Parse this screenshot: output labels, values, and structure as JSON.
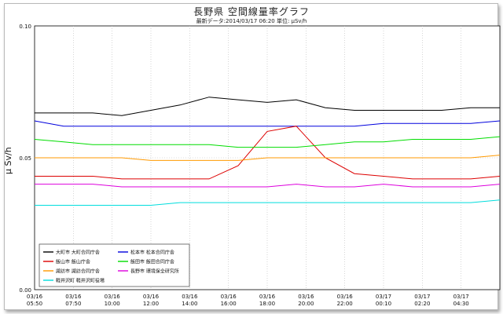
{
  "header": {
    "title": "長野県 空間線量率グラフ",
    "subtitle": "最新データ:2014/03/17 06:20 単位: μSv/h"
  },
  "chart_data": {
    "type": "line",
    "title": "長野県 空間線量率グラフ",
    "subtitle": "最新データ:2014/03/17 06:20 単位: μSv/h",
    "ylabel": "μ Sv/h",
    "ylim": [
      0.0,
      0.1
    ],
    "y_ticks": [
      "0.00",
      "0.05",
      "0.10"
    ],
    "grid": true,
    "x_tick_labels": [
      [
        "03/16",
        "05:50"
      ],
      [
        "03/16",
        "07:50"
      ],
      [
        "03/16",
        "10:00"
      ],
      [
        "03/16",
        "12:00"
      ],
      [
        "03/16",
        "14:00"
      ],
      [
        "03/16",
        "16:00"
      ],
      [
        "03/16",
        "18:00"
      ],
      [
        "03/16",
        "20:00"
      ],
      [
        "03/16",
        "22:00"
      ],
      [
        "03/17",
        "00:10"
      ],
      [
        "03/17",
        "02:20"
      ],
      [
        "03/17",
        "04:30"
      ]
    ],
    "legend_placement": "bottom-left",
    "series": [
      {
        "name": "大町市 大町合同庁舎",
        "color": "#000000",
        "values": [
          0.067,
          0.067,
          0.067,
          0.066,
          0.068,
          0.07,
          0.073,
          0.072,
          0.071,
          0.072,
          0.069,
          0.068,
          0.068,
          0.068,
          0.068,
          0.069,
          0.069
        ]
      },
      {
        "name": "松本市 松本合同庁舎",
        "color": "#0000dd",
        "values": [
          0.064,
          0.062,
          0.062,
          0.062,
          0.062,
          0.062,
          0.062,
          0.062,
          0.062,
          0.062,
          0.062,
          0.062,
          0.063,
          0.063,
          0.063,
          0.063,
          0.064
        ]
      },
      {
        "name": "飯山市 飯山庁舎",
        "color": "#dd0000",
        "values": [
          0.043,
          0.043,
          0.043,
          0.042,
          0.042,
          0.042,
          0.042,
          0.047,
          0.06,
          0.062,
          0.05,
          0.044,
          0.043,
          0.042,
          0.042,
          0.042,
          0.043
        ]
      },
      {
        "name": "飯田市 飯田合同庁舎",
        "color": "#00dd00",
        "values": [
          0.057,
          0.056,
          0.055,
          0.055,
          0.055,
          0.055,
          0.055,
          0.054,
          0.054,
          0.054,
          0.055,
          0.056,
          0.056,
          0.057,
          0.057,
          0.057,
          0.058
        ]
      },
      {
        "name": "諏訪市 諏訪合同庁舎",
        "color": "#ff9900",
        "values": [
          0.05,
          0.05,
          0.05,
          0.05,
          0.049,
          0.049,
          0.049,
          0.049,
          0.05,
          0.05,
          0.05,
          0.05,
          0.05,
          0.05,
          0.05,
          0.05,
          0.051
        ]
      },
      {
        "name": "長野市 環境保全研究所",
        "color": "#dd00dd",
        "values": [
          0.04,
          0.04,
          0.04,
          0.039,
          0.039,
          0.039,
          0.039,
          0.039,
          0.039,
          0.04,
          0.039,
          0.039,
          0.04,
          0.039,
          0.039,
          0.039,
          0.04
        ]
      },
      {
        "name": "軽井沢町 軽井沢町役場",
        "color": "#00dddd",
        "values": [
          0.032,
          0.032,
          0.032,
          0.032,
          0.032,
          0.033,
          0.033,
          0.033,
          0.033,
          0.033,
          0.033,
          0.033,
          0.033,
          0.033,
          0.033,
          0.033,
          0.034
        ]
      }
    ]
  }
}
